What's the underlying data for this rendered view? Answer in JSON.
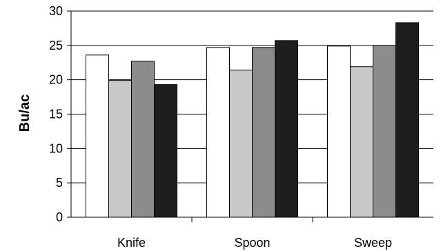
{
  "chart_data": {
    "type": "bar",
    "title": "",
    "xlabel": "",
    "ylabel": "Bu/ac",
    "ylim": [
      0,
      30
    ],
    "yticks": [
      0,
      5,
      10,
      15,
      20,
      25,
      30
    ],
    "categories": [
      "Knife",
      "Spoon",
      "Sweep"
    ],
    "grid": true,
    "legend": "none",
    "series": [
      {
        "color": "#ffffff",
        "values": [
          23.6,
          24.7,
          24.9
        ]
      },
      {
        "color": "#c8c8c8",
        "values": [
          19.9,
          21.4,
          21.9
        ]
      },
      {
        "color": "#8c8c8c",
        "values": [
          22.7,
          24.7,
          25.0
        ]
      },
      {
        "color": "#1e1e1e",
        "values": [
          19.3,
          25.7,
          28.3
        ]
      }
    ]
  }
}
